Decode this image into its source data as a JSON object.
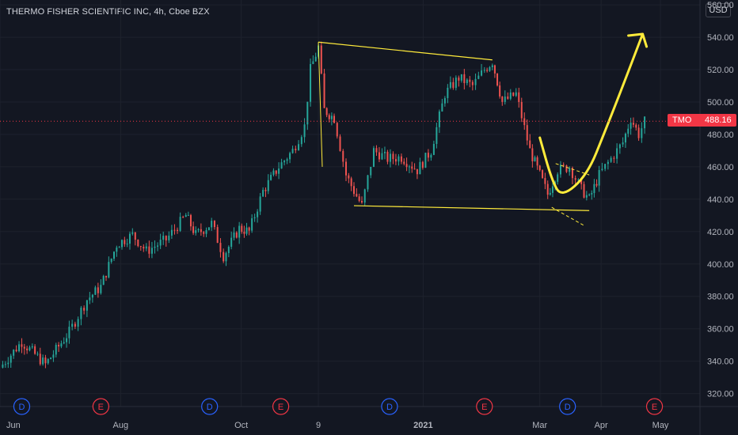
{
  "header": {
    "title": "THERMO FISHER SCIENTIFIC INC, 4h, Cboe BZX",
    "currency": "USD"
  },
  "price_tag": {
    "symbol": "TMO",
    "value": "488.16",
    "color": "#f23645"
  },
  "colors": {
    "background": "#131722",
    "up": "#26a69a",
    "down": "#ef5350",
    "drawing": "#ffeb3b",
    "event_dividend": "#2962ff",
    "event_earnings": "#f23645"
  },
  "chart_data": {
    "type": "candlestick",
    "title": "THERMO FISHER SCIENTIFIC INC, 4h, Cboe BZX",
    "y_axis": {
      "ticks": [
        320,
        340,
        360,
        380,
        400,
        420,
        440,
        460,
        480,
        500,
        520,
        540,
        560
      ],
      "tick_labels": [
        "320.00",
        "340.00",
        "360.00",
        "380.00",
        "400.00",
        "420.00",
        "440.00",
        "460.00",
        "480.00",
        "500.00",
        "520.00",
        "540.00",
        "560.00"
      ],
      "range": [
        312,
        563
      ]
    },
    "x_axis": {
      "labels": [
        "Jun",
        "Aug",
        "Oct",
        "9",
        "2021",
        "Mar",
        "Apr",
        "May"
      ],
      "bold_labels": [
        "2021"
      ],
      "range": [
        "2020-06-01",
        "2021-05-21"
      ]
    },
    "last_price": 488.16,
    "approximate_path": [
      [
        "2020-06-01",
        336
      ],
      [
        "2020-06-12",
        352
      ],
      [
        "2020-06-24",
        338
      ],
      [
        "2020-07-06",
        358
      ],
      [
        "2020-07-15",
        378
      ],
      [
        "2020-07-22",
        386
      ],
      [
        "2020-07-30",
        412
      ],
      [
        "2020-08-07",
        418
      ],
      [
        "2020-08-14",
        408
      ],
      [
        "2020-08-24",
        415
      ],
      [
        "2020-09-03",
        430
      ],
      [
        "2020-09-08",
        418
      ],
      [
        "2020-09-16",
        425
      ],
      [
        "2020-09-22",
        405
      ],
      [
        "2020-09-30",
        422
      ],
      [
        "2020-10-05",
        420
      ],
      [
        "2020-10-12",
        445
      ],
      [
        "2020-10-20",
        460
      ],
      [
        "2020-10-27",
        470
      ],
      [
        "2020-11-02",
        485
      ],
      [
        "2020-11-05",
        520
      ],
      [
        "2020-11-09",
        534
      ],
      [
        "2020-11-12",
        495
      ],
      [
        "2020-11-17",
        490
      ],
      [
        "2020-11-23",
        455
      ],
      [
        "2020-11-27",
        445
      ],
      [
        "2020-12-01",
        436
      ],
      [
        "2020-12-07",
        470
      ],
      [
        "2020-12-14",
        465
      ],
      [
        "2020-12-21",
        466
      ],
      [
        "2020-12-29",
        458
      ],
      [
        "2021-01-05",
        470
      ],
      [
        "2021-01-12",
        505
      ],
      [
        "2021-01-19",
        515
      ],
      [
        "2021-01-26",
        510
      ],
      [
        "2021-02-01",
        520
      ],
      [
        "2021-02-05",
        525
      ],
      [
        "2021-02-10",
        500
      ],
      [
        "2021-02-17",
        505
      ],
      [
        "2021-02-24",
        470
      ],
      [
        "2021-03-01",
        455
      ],
      [
        "2021-03-05",
        443
      ],
      [
        "2021-03-10",
        458
      ],
      [
        "2021-03-16",
        460
      ],
      [
        "2021-03-22",
        446
      ],
      [
        "2021-03-26",
        440
      ],
      [
        "2021-03-31",
        455
      ],
      [
        "2021-04-06",
        465
      ],
      [
        "2021-04-12",
        475
      ],
      [
        "2021-04-16",
        490
      ],
      [
        "2021-04-20",
        480
      ],
      [
        "2021-04-23",
        488
      ]
    ],
    "events": [
      {
        "type": "D",
        "date": "2020-06-12"
      },
      {
        "type": "E",
        "date": "2020-07-22"
      },
      {
        "type": "D",
        "date": "2020-09-15"
      },
      {
        "type": "E",
        "date": "2020-10-21"
      },
      {
        "type": "D",
        "date": "2020-12-15"
      },
      {
        "type": "E",
        "date": "2021-02-01"
      },
      {
        "type": "D",
        "date": "2021-03-15"
      },
      {
        "type": "E",
        "date": "2021-04-28"
      }
    ],
    "annotations": {
      "upper_trendline": [
        [
          "2020-11-09",
          537
        ],
        [
          "2021-02-05",
          526
        ]
      ],
      "lower_trendline": [
        [
          "2020-11-27",
          436
        ],
        [
          "2021-03-26",
          433
        ]
      ],
      "flag_channel": [
        [
          [
            "2021-03-09",
            462
          ],
          [
            "2021-03-26",
            455
          ]
        ],
        [
          [
            "2021-03-07",
            435
          ],
          [
            "2021-03-23",
            424
          ]
        ]
      ],
      "arrow_path": [
        [
          "2021-03-01",
          478
        ],
        [
          "2021-03-07",
          452
        ],
        [
          "2021-03-12",
          441
        ],
        [
          "2021-03-25",
          455
        ],
        [
          "2021-04-03",
          482
        ],
        [
          "2021-04-12",
          510
        ],
        [
          "2021-04-22",
          542
        ]
      ]
    }
  }
}
